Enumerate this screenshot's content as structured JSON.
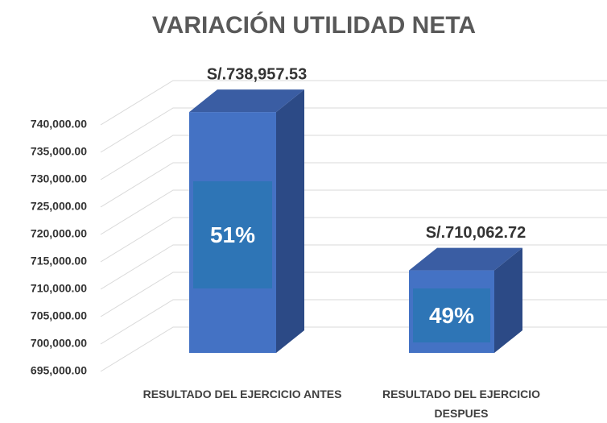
{
  "chart_data": {
    "type": "bar3d",
    "title": "VARIACIÓN UTILIDAD NETA",
    "categories": [
      "RESULTADO DEL EJERCICIO ANTES",
      "RESULTADO DEL EJERCICIO DESPUES"
    ],
    "values": [
      738957.53,
      710062.72
    ],
    "value_labels": [
      "S/.738,957.53",
      "S/.710,062.72"
    ],
    "shares": [
      51,
      49
    ],
    "share_labels": [
      "51%",
      "49%"
    ],
    "color": "#4472c4",
    "ylim": [
      695000,
      740000
    ],
    "yticks": [
      {
        "value": 695000,
        "label": "695,000.00"
      },
      {
        "value": 700000,
        "label": "700,000.00"
      },
      {
        "value": 705000,
        "label": "705,000.00"
      },
      {
        "value": 710000,
        "label": "710,000.00"
      },
      {
        "value": 715000,
        "label": "715,000.00"
      },
      {
        "value": 720000,
        "label": "720,000.00"
      },
      {
        "value": 725000,
        "label": "725,000.00"
      },
      {
        "value": 730000,
        "label": "730,000.00"
      },
      {
        "value": 735000,
        "label": "735,000.00"
      },
      {
        "value": 740000,
        "label": "740,000.00"
      }
    ],
    "grid": true
  }
}
